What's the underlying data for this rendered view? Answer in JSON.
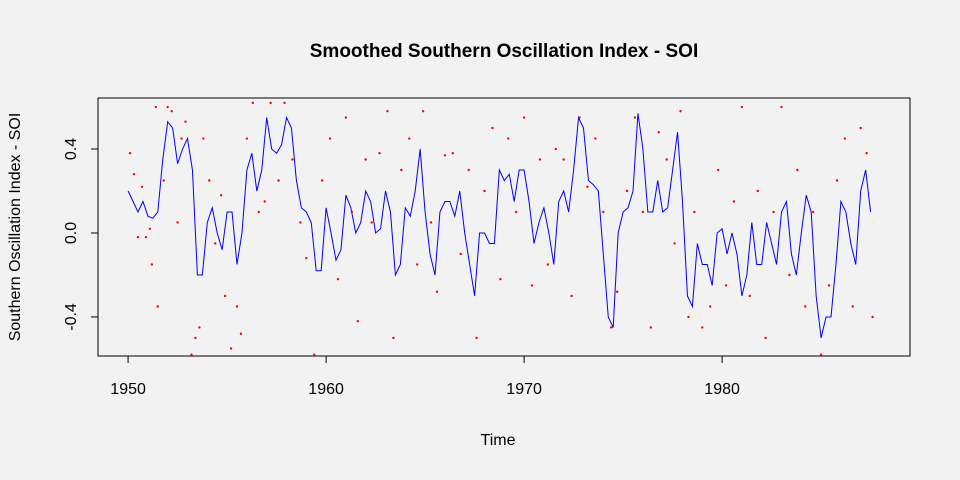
{
  "chart_data": {
    "type": "line",
    "title": "Smoothed Southern Oscillation Index - SOI",
    "xlabel": "Time",
    "ylabel": "Southern Oscillation Index - SOI",
    "xlim": [
      1948.48,
      1989.49
    ],
    "ylim": [
      -0.586,
      0.643
    ],
    "xticks": [
      1950,
      1960,
      1970,
      1980
    ],
    "yticks": [
      -0.4,
      {
        "value": 0,
        "label": "0.0"
      },
      0.4
    ],
    "series": [
      {
        "mark": "line",
        "color": "#0000ff",
        "x": [
          1950.0,
          1950.25,
          1950.5,
          1950.75,
          1951.0,
          1951.25,
          1951.5,
          1951.75,
          1952.0,
          1952.25,
          1952.5,
          1952.75,
          1953.0,
          1953.25,
          1953.5,
          1953.75,
          1954.0,
          1954.25,
          1954.5,
          1954.75,
          1955.0,
          1955.25,
          1955.5,
          1955.75,
          1956.0,
          1956.25,
          1956.5,
          1956.75,
          1957.0,
          1957.25,
          1957.5,
          1957.75,
          1958.0,
          1958.25,
          1958.5,
          1958.75,
          1959.0,
          1959.25,
          1959.5,
          1959.75,
          1960.0,
          1960.25,
          1960.5,
          1960.75,
          1961.0,
          1961.25,
          1961.5,
          1961.75,
          1962.0,
          1962.25,
          1962.5,
          1962.75,
          1963.0,
          1963.25,
          1963.5,
          1963.75,
          1964.0,
          1964.25,
          1964.5,
          1964.75,
          1965.0,
          1965.25,
          1965.5,
          1965.75,
          1966.0,
          1966.25,
          1966.5,
          1966.75,
          1967.0,
          1967.25,
          1967.5,
          1967.75,
          1968.0,
          1968.25,
          1968.5,
          1968.75,
          1969.0,
          1969.25,
          1969.5,
          1969.75,
          1970.0,
          1970.25,
          1970.5,
          1970.75,
          1971.0,
          1971.25,
          1971.5,
          1971.75,
          1972.0,
          1972.25,
          1972.5,
          1972.75,
          1973.0,
          1973.25,
          1973.5,
          1973.75,
          1974.0,
          1974.25,
          1974.5,
          1974.75,
          1975.0,
          1975.25,
          1975.5,
          1975.75,
          1976.0,
          1976.25,
          1976.5,
          1976.75,
          1977.0,
          1977.25,
          1977.5,
          1977.75,
          1978.0,
          1978.25,
          1978.5,
          1978.75,
          1979.0,
          1979.25,
          1979.5,
          1979.75,
          1980.0,
          1980.25,
          1980.5,
          1980.75,
          1981.0,
          1981.25,
          1981.5,
          1981.75,
          1982.0,
          1982.25,
          1982.5,
          1982.75,
          1983.0,
          1983.25,
          1983.5,
          1983.75,
          1984.0,
          1984.25,
          1984.5,
          1984.75,
          1985.0,
          1985.25,
          1985.5,
          1985.75,
          1986.0,
          1986.25,
          1986.5,
          1986.75,
          1987.0,
          1987.25,
          1987.5
        ],
        "values": [
          0.2,
          0.15,
          0.1,
          0.15,
          0.08,
          0.07,
          0.1,
          0.35,
          0.53,
          0.5,
          0.33,
          0.4,
          0.45,
          0.3,
          -0.2,
          -0.2,
          0.05,
          0.12,
          0.0,
          -0.08,
          0.1,
          0.1,
          -0.15,
          0.0,
          0.3,
          0.38,
          0.2,
          0.3,
          0.55,
          0.4,
          0.38,
          0.42,
          0.55,
          0.5,
          0.25,
          0.12,
          0.1,
          0.05,
          -0.18,
          -0.18,
          0.12,
          0.0,
          -0.13,
          -0.08,
          0.18,
          0.12,
          0.0,
          0.05,
          0.2,
          0.15,
          0.0,
          0.02,
          0.2,
          0.1,
          -0.2,
          -0.15,
          0.12,
          0.08,
          0.2,
          0.4,
          0.1,
          -0.1,
          -0.2,
          0.1,
          0.15,
          0.15,
          0.08,
          0.2,
          0.0,
          -0.15,
          -0.3,
          0.0,
          0.0,
          -0.05,
          -0.05,
          0.3,
          0.25,
          0.28,
          0.15,
          0.3,
          0.3,
          0.15,
          -0.05,
          0.05,
          0.12,
          0.0,
          -0.15,
          0.15,
          0.2,
          0.1,
          0.3,
          0.55,
          0.5,
          0.25,
          0.23,
          0.2,
          -0.1,
          -0.4,
          -0.45,
          0.0,
          0.1,
          0.12,
          0.2,
          0.57,
          0.4,
          0.1,
          0.1,
          0.25,
          0.1,
          0.12,
          0.3,
          0.48,
          0.15,
          -0.3,
          -0.35,
          -0.05,
          -0.15,
          -0.15,
          -0.25,
          0.0,
          0.02,
          -0.1,
          0.0,
          -0.1,
          -0.3,
          -0.2,
          0.05,
          -0.15,
          -0.15,
          0.05,
          -0.05,
          -0.15,
          0.1,
          0.15,
          -0.1,
          -0.2,
          0.0,
          0.18,
          0.1,
          -0.3,
          -0.5,
          -0.4,
          -0.4,
          -0.15,
          0.15,
          0.1,
          -0.05,
          -0.15,
          0.2,
          0.3,
          0.1
        ]
      },
      {
        "mark": "point",
        "color": "#ff0000",
        "x": [
          1950.1,
          1950.3,
          1950.5,
          1950.7,
          1950.9,
          1951.1,
          1951.2,
          1951.4,
          1951.5,
          1951.8,
          1952.0,
          1952.2,
          1952.5,
          1952.7,
          1952.9,
          1953.2,
          1953.4,
          1953.6,
          1953.8,
          1954.1,
          1954.4,
          1954.7,
          1954.9,
          1955.2,
          1955.5,
          1955.7,
          1956.0,
          1956.3,
          1956.6,
          1956.9,
          1957.2,
          1957.6,
          1957.9,
          1958.3,
          1958.7,
          1959.0,
          1959.4,
          1959.8,
          1960.2,
          1960.6,
          1961.0,
          1961.3,
          1961.6,
          1962.0,
          1962.3,
          1962.7,
          1963.1,
          1963.4,
          1963.8,
          1964.2,
          1964.6,
          1964.9,
          1965.3,
          1965.6,
          1966.0,
          1966.4,
          1966.8,
          1967.2,
          1967.6,
          1968.0,
          1968.4,
          1968.8,
          1969.2,
          1969.6,
          1970.0,
          1970.4,
          1970.8,
          1971.2,
          1971.6,
          1972.0,
          1972.4,
          1972.8,
          1973.2,
          1973.6,
          1974.0,
          1974.4,
          1974.7,
          1975.2,
          1975.6,
          1976.0,
          1976.4,
          1976.8,
          1977.2,
          1977.6,
          1977.9,
          1978.3,
          1978.6,
          1979.0,
          1979.4,
          1979.8,
          1980.2,
          1980.6,
          1981.0,
          1981.4,
          1981.8,
          1982.2,
          1982.6,
          1983.0,
          1983.4,
          1983.8,
          1984.2,
          1984.6,
          1985.0,
          1985.4,
          1985.8,
          1986.2,
          1986.6,
          1987.0,
          1987.3,
          1987.6
        ],
        "values": [
          0.38,
          0.28,
          -0.02,
          0.22,
          -0.02,
          0.02,
          -0.15,
          0.6,
          -0.35,
          0.25,
          0.6,
          0.58,
          0.05,
          0.45,
          0.53,
          -0.58,
          -0.5,
          -0.45,
          0.45,
          0.25,
          -0.05,
          0.18,
          -0.3,
          -0.55,
          -0.35,
          -0.48,
          0.45,
          0.62,
          0.1,
          0.15,
          0.62,
          0.25,
          0.62,
          0.35,
          0.05,
          -0.12,
          -0.58,
          0.25,
          0.45,
          -0.22,
          0.55,
          0.1,
          -0.42,
          0.35,
          0.05,
          0.38,
          0.58,
          -0.5,
          0.3,
          0.45,
          -0.15,
          0.58,
          0.05,
          -0.28,
          0.37,
          0.38,
          -0.1,
          0.3,
          -0.5,
          0.2,
          0.5,
          -0.22,
          0.45,
          0.1,
          0.55,
          -0.25,
          0.35,
          -0.15,
          0.4,
          0.35,
          -0.3,
          0.55,
          0.22,
          0.45,
          0.1,
          -0.45,
          -0.28,
          0.2,
          0.55,
          0.1,
          -0.45,
          0.48,
          0.35,
          -0.05,
          0.58,
          -0.4,
          0.1,
          -0.45,
          -0.35,
          0.3,
          -0.25,
          0.15,
          0.6,
          -0.3,
          0.2,
          -0.5,
          0.1,
          0.6,
          -0.2,
          0.3,
          -0.35,
          0.1,
          -0.58,
          -0.25,
          0.25,
          0.45,
          -0.35,
          0.5,
          0.38,
          -0.4
        ]
      }
    ]
  }
}
